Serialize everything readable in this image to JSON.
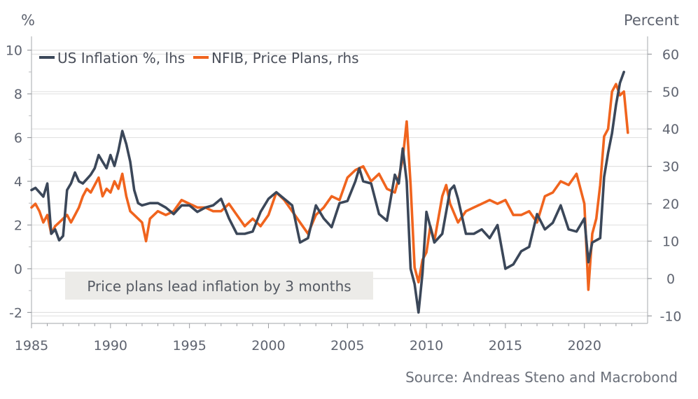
{
  "chart_data": {
    "type": "line",
    "left_axis": {
      "unit": "%",
      "ylim": [
        -2.5,
        10.5
      ],
      "ticks": [
        -2,
        0,
        2,
        4,
        6,
        8,
        10
      ],
      "minor_ticks": [
        -1,
        1,
        3,
        5,
        7,
        9
      ]
    },
    "right_axis": {
      "unit": "Percent",
      "ylim": [
        -12,
        64
      ],
      "ticks": [
        -10,
        0,
        10,
        20,
        30,
        40,
        50,
        60
      ]
    },
    "x_axis": {
      "xlim": [
        1985,
        2024
      ],
      "ticks": [
        1985,
        1990,
        1995,
        2000,
        2005,
        2010,
        2015,
        2020
      ]
    },
    "grid": true,
    "legend_position": "top-left",
    "annotation": "Price plans lead inflation by 3 months",
    "source": "Source: Andreas Steno and Macrobond",
    "colors": {
      "inflation": "#3b4759",
      "nfib": "#f0641e",
      "grid": "#e2e2e2",
      "annotation_bg": "#ecebe8"
    },
    "series": [
      {
        "name": "US Inflation %, lhs",
        "axis": "left",
        "x": [
          1985.0,
          1985.25,
          1985.5,
          1985.75,
          1986.0,
          1986.25,
          1986.5,
          1986.75,
          1987.0,
          1987.25,
          1987.5,
          1987.75,
          1988.0,
          1988.25,
          1988.5,
          1988.75,
          1989.0,
          1989.25,
          1989.5,
          1989.75,
          1990.0,
          1990.25,
          1990.5,
          1990.75,
          1991.0,
          1991.25,
          1991.5,
          1991.75,
          1992.0,
          1992.5,
          1993.0,
          1993.5,
          1994.0,
          1994.5,
          1995.0,
          1995.5,
          1996.0,
          1996.5,
          1997.0,
          1997.5,
          1998.0,
          1998.5,
          1999.0,
          1999.5,
          2000.0,
          2000.5,
          2001.0,
          2001.5,
          2002.0,
          2002.5,
          2003.0,
          2003.5,
          2004.0,
          2004.5,
          2005.0,
          2005.5,
          2005.75,
          2006.0,
          2006.5,
          2007.0,
          2007.5,
          2008.0,
          2008.25,
          2008.5,
          2008.75,
          2009.0,
          2009.25,
          2009.5,
          2009.75,
          2010.0,
          2010.5,
          2011.0,
          2011.5,
          2011.75,
          2012.0,
          2012.5,
          2013.0,
          2013.5,
          2014.0,
          2014.5,
          2015.0,
          2015.5,
          2016.0,
          2016.5,
          2017.0,
          2017.5,
          2018.0,
          2018.5,
          2019.0,
          2019.5,
          2020.0,
          2020.25,
          2020.5,
          2020.75,
          2021.0,
          2021.25,
          2021.5,
          2021.75,
          2022.0,
          2022.25,
          2022.5
        ],
        "values": [
          3.6,
          3.7,
          3.5,
          3.3,
          3.9,
          1.6,
          1.8,
          1.3,
          1.5,
          3.6,
          3.9,
          4.4,
          4.0,
          3.9,
          4.1,
          4.3,
          4.6,
          5.2,
          4.9,
          4.6,
          5.2,
          4.7,
          5.4,
          6.3,
          5.7,
          4.9,
          3.6,
          3.0,
          2.9,
          3.0,
          3.0,
          2.8,
          2.5,
          2.9,
          2.9,
          2.6,
          2.8,
          2.9,
          3.2,
          2.3,
          1.6,
          1.6,
          1.7,
          2.6,
          3.2,
          3.5,
          3.2,
          2.9,
          1.2,
          1.4,
          2.9,
          2.3,
          1.9,
          3.0,
          3.1,
          4.0,
          4.6,
          4.0,
          3.9,
          2.5,
          2.2,
          4.3,
          3.9,
          5.5,
          4.0,
          0.0,
          -0.7,
          -2.0,
          -0.2,
          2.6,
          1.2,
          1.6,
          3.6,
          3.8,
          3.2,
          1.6,
          1.6,
          1.8,
          1.4,
          2.0,
          0.0,
          0.2,
          0.8,
          1.0,
          2.5,
          1.8,
          2.1,
          2.9,
          1.8,
          1.7,
          2.3,
          0.3,
          1.2,
          1.3,
          1.4,
          4.2,
          5.3,
          6.2,
          7.5,
          8.5,
          9.0
        ]
      },
      {
        "name": "NFIB, Price Plans, rhs",
        "axis": "right",
        "x": [
          1985.0,
          1985.25,
          1985.5,
          1985.75,
          1986.0,
          1986.25,
          1986.5,
          1986.75,
          1987.0,
          1987.25,
          1987.5,
          1987.75,
          1988.0,
          1988.25,
          1988.5,
          1988.75,
          1989.0,
          1989.25,
          1989.5,
          1989.75,
          1990.0,
          1990.25,
          1990.5,
          1990.75,
          1991.0,
          1991.25,
          1991.5,
          1991.75,
          1992.0,
          1992.25,
          1992.5,
          1993.0,
          1993.5,
          1994.0,
          1994.5,
          1995.0,
          1995.5,
          1996.0,
          1996.5,
          1997.0,
          1997.5,
          1998.0,
          1998.5,
          1999.0,
          1999.5,
          2000.0,
          2000.5,
          2001.0,
          2001.5,
          2002.0,
          2002.5,
          2003.0,
          2003.5,
          2004.0,
          2004.5,
          2005.0,
          2005.5,
          2006.0,
          2006.5,
          2007.0,
          2007.5,
          2008.0,
          2008.25,
          2008.5,
          2008.75,
          2009.0,
          2009.25,
          2009.5,
          2009.75,
          2010.0,
          2010.25,
          2010.5,
          2011.0,
          2011.25,
          2011.5,
          2012.0,
          2012.5,
          2013.0,
          2013.5,
          2014.0,
          2014.5,
          2015.0,
          2015.5,
          2016.0,
          2016.5,
          2017.0,
          2017.5,
          2018.0,
          2018.5,
          2019.0,
          2019.5,
          2020.0,
          2020.25,
          2020.5,
          2020.75,
          2021.0,
          2021.25,
          2021.5,
          2021.75,
          2022.0,
          2022.25,
          2022.5,
          2022.75
        ],
        "values": [
          19,
          20,
          18,
          15,
          17,
          12,
          14,
          15,
          16,
          17,
          15,
          17,
          19,
          22,
          24,
          23,
          25,
          27,
          22,
          24,
          23,
          26,
          24,
          28,
          22,
          18,
          17,
          16,
          15,
          10,
          16,
          18,
          17,
          18,
          21,
          20,
          19,
          19,
          18,
          18,
          20,
          17,
          14,
          16,
          14,
          17,
          23,
          21,
          18,
          15,
          12,
          17,
          19,
          22,
          21,
          27,
          29,
          30,
          26,
          28,
          24,
          23,
          27,
          32,
          42,
          25,
          3,
          -1,
          5,
          7,
          14,
          10,
          22,
          25,
          20,
          15,
          18,
          19,
          20,
          21,
          20,
          21,
          17,
          17,
          18,
          15,
          22,
          23,
          26,
          25,
          28,
          20,
          -3,
          12,
          16,
          25,
          38,
          40,
          50,
          52,
          49,
          50,
          39
        ]
      }
    ]
  }
}
